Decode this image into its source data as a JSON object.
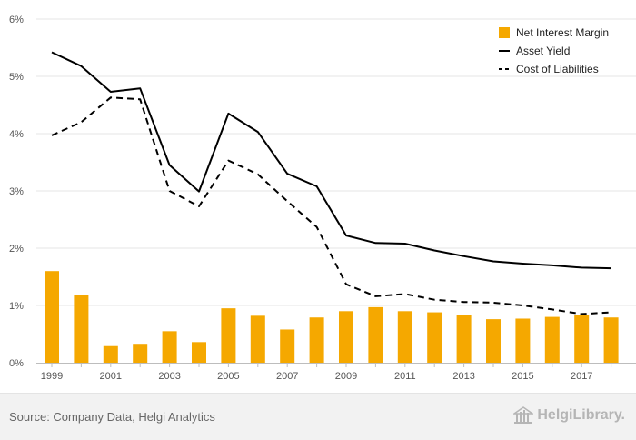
{
  "chart_data": {
    "type": "bar",
    "x_tick_labels": [
      "1999",
      "2001",
      "2003",
      "2005",
      "2007",
      "2009",
      "2011",
      "2013",
      "2015",
      "2017"
    ],
    "y_tick_labels": [
      "0%",
      "1%",
      "2%",
      "3%",
      "4%",
      "5%",
      "6%"
    ],
    "ylim": [
      0,
      6
    ],
    "grid": true,
    "legend_position": "top-right",
    "x": [
      1999,
      2000,
      2001,
      2002,
      2003,
      2004,
      2005,
      2006,
      2007,
      2008,
      2009,
      2010,
      2011,
      2012,
      2013,
      2014,
      2015,
      2016,
      2017,
      2018
    ],
    "series": [
      {
        "name": "Net Interest Margin",
        "type": "bar",
        "color": "#f5a800",
        "values": [
          1.6,
          1.19,
          0.29,
          0.33,
          0.55,
          0.36,
          0.95,
          0.82,
          0.58,
          0.79,
          0.9,
          0.97,
          0.9,
          0.88,
          0.84,
          0.76,
          0.77,
          0.8,
          0.84,
          0.79
        ]
      },
      {
        "name": "Asset Yield",
        "type": "line",
        "style": "solid",
        "color": "#000000",
        "values": [
          5.42,
          5.18,
          4.73,
          4.79,
          3.45,
          2.99,
          4.35,
          4.03,
          3.3,
          3.08,
          2.22,
          2.09,
          2.08,
          1.96,
          1.86,
          1.77,
          1.73,
          1.7,
          1.66,
          1.65
        ]
      },
      {
        "name": "Cost of Liabilities",
        "type": "line",
        "style": "dashed",
        "color": "#000000",
        "values": [
          3.97,
          4.2,
          4.63,
          4.6,
          3.0,
          2.73,
          3.53,
          3.29,
          2.82,
          2.37,
          1.37,
          1.16,
          1.2,
          1.1,
          1.06,
          1.05,
          1.0,
          0.93,
          0.85,
          0.88
        ]
      }
    ]
  },
  "footer": {
    "source": "Source: Company Data, Helgi Analytics",
    "brand": "HelgiLibrary."
  },
  "icons": {
    "brand_icon": "library-building-icon"
  }
}
